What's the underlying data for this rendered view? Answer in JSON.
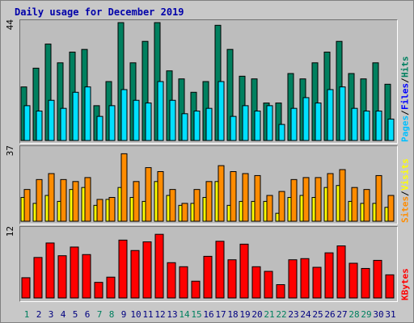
{
  "title": "Daily usage for December 2019",
  "colors": {
    "hits": "#00805f",
    "files": "#00e0ff",
    "pages": "#00c0ff",
    "visits": "#ff8c00",
    "sites": "#ffff00",
    "kbytes": "#ff0000",
    "weekday_label": "#000080",
    "weekend_label": "#00805f",
    "hits_legend": "#00805f",
    "files_legend": "#0000ff",
    "pages_legend": "#00c0ff",
    "sites_legend": "#ff8c00",
    "visits_legend": "#ffff00",
    "kbytes_legend": "#ff0000",
    "separator": "#000000"
  },
  "legend": {
    "panel1": {
      "pages": "Pages",
      "sep1": " / ",
      "files": "Files",
      "sep2": " / ",
      "hits": "Hits"
    },
    "panel2": {
      "sites": "Sites",
      "sep1": " / ",
      "visits": "Visits"
    },
    "panel3": {
      "kbytes": "KBytes"
    }
  },
  "chart_data": [
    {
      "type": "bar",
      "title": "Daily usage for December 2019",
      "ymax_label": "44",
      "ylim": [
        0,
        44
      ],
      "categories": [
        "1",
        "2",
        "3",
        "4",
        "5",
        "6",
        "7",
        "8",
        "9",
        "10",
        "11",
        "12",
        "13",
        "14",
        "15",
        "16",
        "17",
        "18",
        "19",
        "20",
        "21",
        "22",
        "23",
        "24",
        "25",
        "26",
        "27",
        "28",
        "29",
        "30",
        "31"
      ],
      "weekend_days": [
        "1",
        "7",
        "8",
        "14",
        "15",
        "21",
        "22",
        "28",
        "29"
      ],
      "series": [
        {
          "name": "Hits",
          "values": [
            20,
            27,
            36,
            29,
            33,
            34,
            13,
            22,
            44,
            29,
            37,
            44,
            26,
            23,
            18,
            22,
            43,
            34,
            24,
            23,
            14,
            14,
            25,
            23,
            29,
            33,
            37,
            25,
            23,
            29,
            21
          ]
        },
        {
          "name": "Files",
          "values": [
            13,
            11,
            15,
            12,
            18,
            20,
            9,
            13,
            19,
            15,
            14,
            22,
            15,
            10,
            11,
            12,
            22,
            9,
            13,
            11,
            13,
            6,
            12,
            16,
            14,
            19,
            20,
            12,
            11,
            11,
            8
          ]
        }
      ]
    },
    {
      "type": "bar",
      "ymax_label": "37",
      "ylim": [
        0,
        37
      ],
      "categories": [
        "1",
        "2",
        "3",
        "4",
        "5",
        "6",
        "7",
        "8",
        "9",
        "10",
        "11",
        "12",
        "13",
        "14",
        "15",
        "16",
        "17",
        "18",
        "19",
        "20",
        "21",
        "22",
        "23",
        "24",
        "25",
        "26",
        "27",
        "28",
        "29",
        "30",
        "31"
      ],
      "series": [
        {
          "name": "Visits",
          "values": [
            16,
            21,
            24,
            21,
            20,
            22,
            11,
            12,
            34,
            20,
            27,
            25,
            16,
            9,
            16,
            20,
            28,
            25,
            24,
            23,
            13,
            15,
            21,
            22,
            22,
            24,
            26,
            17,
            16,
            23,
            13
          ]
        },
        {
          "name": "Sites",
          "values": [
            12,
            9,
            13,
            10,
            16,
            17,
            8,
            11,
            17,
            12,
            10,
            20,
            13,
            8,
            9,
            12,
            20,
            8,
            10,
            10,
            10,
            4,
            12,
            13,
            12,
            17,
            18,
            10,
            9,
            9,
            7
          ]
        }
      ]
    },
    {
      "type": "bar",
      "ymax_label": "12",
      "ylim": [
        0,
        12
      ],
      "categories": [
        "1",
        "2",
        "3",
        "4",
        "5",
        "6",
        "7",
        "8",
        "9",
        "10",
        "11",
        "12",
        "13",
        "14",
        "15",
        "16",
        "17",
        "18",
        "19",
        "20",
        "21",
        "22",
        "23",
        "24",
        "25",
        "26",
        "27",
        "28",
        "29",
        "30",
        "31"
      ],
      "series": [
        {
          "name": "KBytes",
          "values": [
            3.5,
            7,
            9.5,
            7.3,
            8.8,
            7.5,
            2.7,
            3.6,
            10,
            8.2,
            9.7,
            11,
            6.1,
            5.4,
            2.9,
            7.2,
            9.8,
            6.6,
            9.3,
            5.4,
            4.6,
            2.3,
            6.6,
            6.8,
            5.3,
            7.8,
            9,
            6,
            5.1,
            6.5,
            4
          ]
        }
      ]
    }
  ]
}
